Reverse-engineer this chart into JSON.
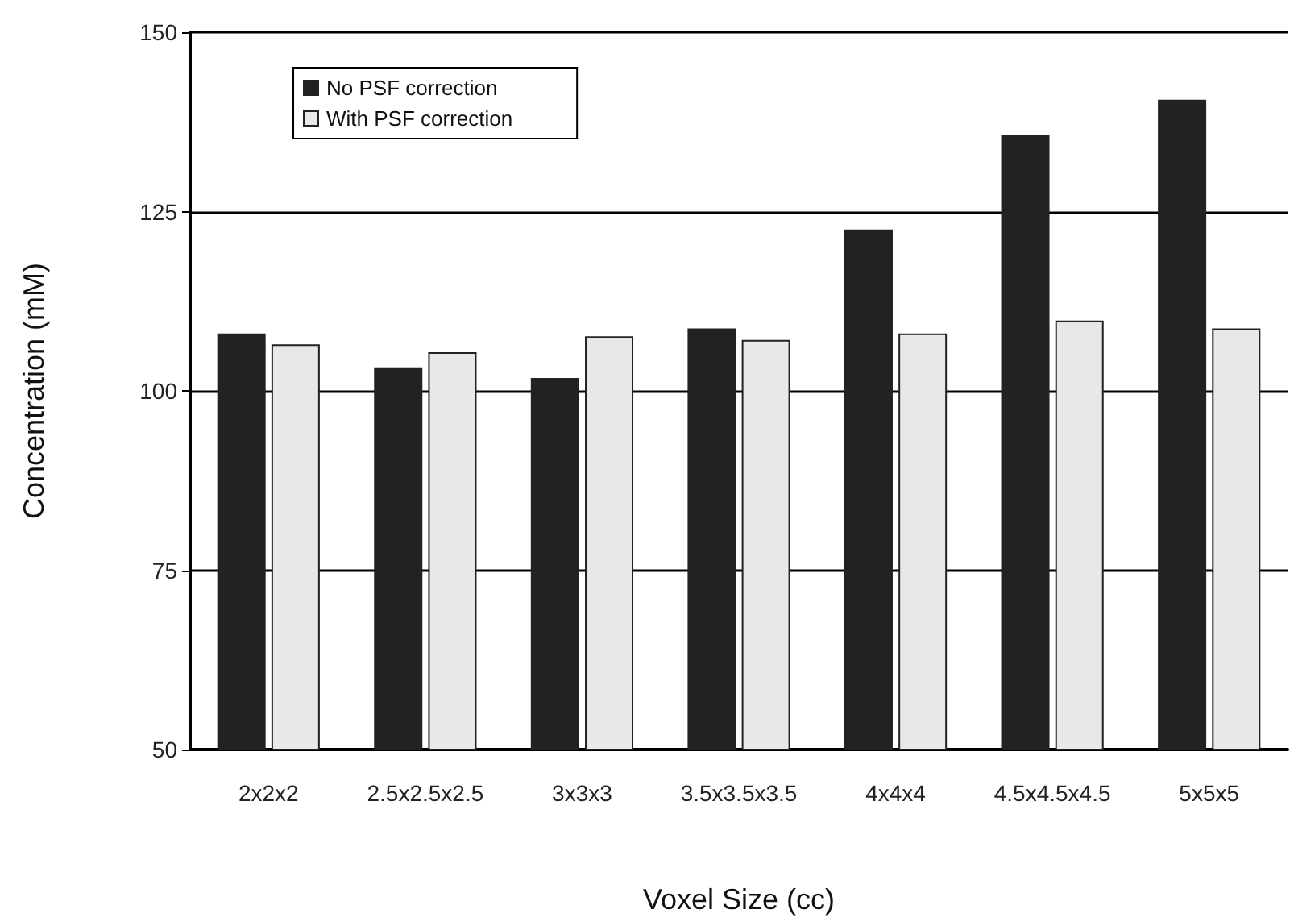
{
  "chart_data": {
    "type": "bar",
    "xlabel": "Voxel Size (cc)",
    "ylabel": "Concentration (mM)",
    "categories": [
      "2x2x2",
      "2.5x2.5x2.5",
      "3x3x3",
      "3.5x3.5x3.5",
      "4x4x4",
      "4.5x4.5x4.5",
      "5x5x5"
    ],
    "series": [
      {
        "name": "No PSF correction",
        "color": "#222222",
        "values": [
          108,
          103.3,
          101.8,
          108.7,
          122.5,
          135.7,
          140.6
        ]
      },
      {
        "name": "With PSF correction",
        "color": "#e8e8e8",
        "values": [
          106.5,
          105.4,
          107.6,
          107.1,
          108,
          109.8,
          108.7
        ]
      }
    ],
    "ylim": [
      50,
      150
    ],
    "yticks": [
      50,
      75,
      100,
      125,
      150
    ],
    "grid": "y",
    "legend": "top left"
  }
}
